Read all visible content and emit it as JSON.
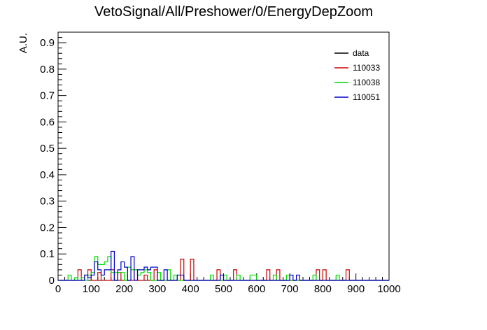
{
  "chart_data": {
    "type": "histogram",
    "title": "VetoSignal/All/Preshower/0/EnergyDepZoom",
    "xlabel": "",
    "ylabel": "A.U.",
    "xlim": [
      0,
      1000
    ],
    "ylim": [
      0,
      0.94
    ],
    "bin_width": 10,
    "grid": false,
    "legend_position": "top-right",
    "xticks": [
      0,
      100,
      200,
      300,
      400,
      500,
      600,
      700,
      800,
      900,
      1000
    ],
    "yticks": [
      0,
      0.1,
      0.2,
      0.3,
      0.4,
      0.5,
      0.6,
      0.7,
      0.8,
      0.9
    ],
    "series": [
      {
        "name": "data",
        "color": "#000000",
        "bins": []
      },
      {
        "name": "110033",
        "color": "#cc0000",
        "bins": [
          [
            60,
            0.04
          ],
          [
            80,
            0.02
          ],
          [
            90,
            0.04
          ],
          [
            120,
            0.03
          ],
          [
            160,
            0.04
          ],
          [
            180,
            0.03
          ],
          [
            230,
            0.04
          ],
          [
            260,
            0.02
          ],
          [
            290,
            0.04
          ],
          [
            370,
            0.08
          ],
          [
            400,
            0.08
          ],
          [
            480,
            0.04
          ],
          [
            530,
            0.04
          ],
          [
            630,
            0.04
          ],
          [
            660,
            0.04
          ],
          [
            780,
            0.04
          ],
          [
            800,
            0.04
          ],
          [
            870,
            0.04
          ]
        ]
      },
      {
        "name": "110038",
        "color": "#00dd00",
        "bins": [
          [
            30,
            0.02
          ],
          [
            50,
            0.01
          ],
          [
            70,
            0.01
          ],
          [
            90,
            0.02
          ],
          [
            100,
            0.03
          ],
          [
            110,
            0.09
          ],
          [
            120,
            0.06
          ],
          [
            130,
            0.06
          ],
          [
            140,
            0.07
          ],
          [
            150,
            0.09
          ],
          [
            160,
            0.03
          ],
          [
            170,
            0.03
          ],
          [
            180,
            0.03
          ],
          [
            190,
            0.03
          ],
          [
            210,
            0.05
          ],
          [
            220,
            0.04
          ],
          [
            230,
            0.04
          ],
          [
            240,
            0.02
          ],
          [
            250,
            0.03
          ],
          [
            260,
            0.04
          ],
          [
            270,
            0.03
          ],
          [
            300,
            0.03
          ],
          [
            330,
            0.04
          ],
          [
            350,
            0.02
          ],
          [
            460,
            0.02
          ],
          [
            500,
            0.02
          ],
          [
            540,
            0.02
          ],
          [
            580,
            0.02
          ],
          [
            590,
            0.02
          ],
          [
            650,
            0.02
          ],
          [
            690,
            0.02
          ],
          [
            770,
            0.02
          ],
          [
            840,
            0.02
          ]
        ]
      },
      {
        "name": "110051",
        "color": "#0000cc",
        "bins": [
          [
            80,
            0.02
          ],
          [
            90,
            0.01
          ],
          [
            100,
            0.02
          ],
          [
            110,
            0.07
          ],
          [
            120,
            0.04
          ],
          [
            130,
            0.02
          ],
          [
            140,
            0.04
          ],
          [
            150,
            0.04
          ],
          [
            160,
            0.11
          ],
          [
            180,
            0.04
          ],
          [
            190,
            0.07
          ],
          [
            200,
            0.05
          ],
          [
            220,
            0.09
          ],
          [
            240,
            0.04
          ],
          [
            250,
            0.04
          ],
          [
            260,
            0.05
          ],
          [
            270,
            0.04
          ],
          [
            280,
            0.05
          ],
          [
            290,
            0.05
          ],
          [
            320,
            0.04
          ],
          [
            360,
            0.02
          ],
          [
            370,
            0.02
          ],
          [
            490,
            0.02
          ],
          [
            700,
            0.02
          ],
          [
            720,
            0.02
          ]
        ]
      }
    ]
  }
}
